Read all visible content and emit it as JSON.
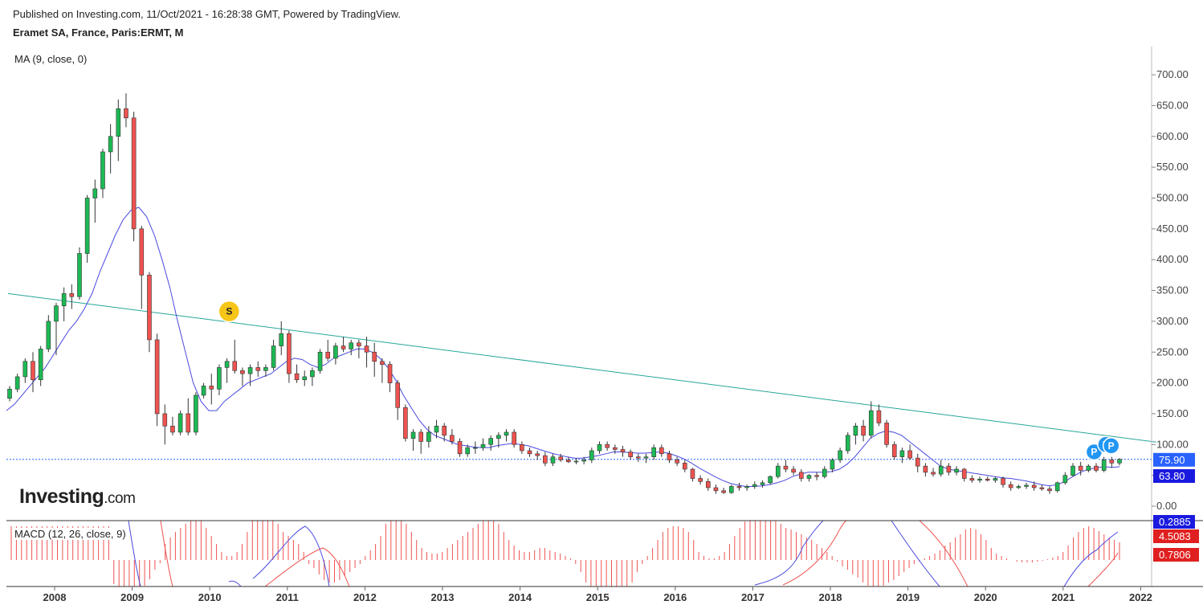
{
  "header": {
    "published": "Published on Investing.com, 11/Oct/2021 - 16:28:38 GMT, Powered by TradingView.",
    "symbol": "Eramet SA, France, Paris:ERMT, M"
  },
  "indicators": {
    "ma_label": "MA (9, close, 0)",
    "macd_label": "MACD (12, 26, close, 9)"
  },
  "logo": {
    "main": "Investing",
    "suffix": ".com"
  },
  "colors": {
    "up": "#26a69a",
    "up_fill": "#1db954",
    "down": "#ef5350",
    "ma": "#4a4ae0",
    "trendline": "#26a69a",
    "last_line": "#2962ff",
    "macd_line": "#4a4ae0",
    "signal_line": "#ef5350",
    "hist": "#ef5350",
    "badge_p": "#2196f3",
    "badge_s": "#f5c518"
  },
  "chart_data": {
    "type": "candlestick",
    "timeframe": "M",
    "ylim": [
      -25,
      740
    ],
    "y_ticks": [
      "0.00",
      "50.00",
      "100.00",
      "150.00",
      "200.00",
      "250.00",
      "300.00",
      "350.00",
      "400.00",
      "450.00",
      "500.00",
      "550.00",
      "600.00",
      "650.00",
      "700.00"
    ],
    "x_ticks": [
      "2008",
      "2009",
      "2010",
      "2011",
      "2012",
      "2013",
      "2014",
      "2015",
      "2016",
      "2017",
      "2018",
      "2019",
      "2020",
      "2021",
      "2022"
    ],
    "last_price": "75.90",
    "ma_value": "63.80",
    "macd_values": [
      "0.2885",
      "4.5083",
      "0.7806"
    ],
    "markers": [
      {
        "label": "S",
        "date": "2010.25",
        "price": 316
      },
      {
        "label": "P",
        "date": "2021.4",
        "price": 88
      },
      {
        "label": "P",
        "date": "2021.55",
        "price": 100
      },
      {
        "label": "P",
        "date": "2021.62",
        "price": 98
      }
    ],
    "trendline": [
      {
        "x": 2007.4,
        "y": 345
      },
      {
        "x": 2022.2,
        "y": 104
      }
    ],
    "candles": [
      [
        175,
        195,
        170,
        190
      ],
      [
        190,
        215,
        185,
        210
      ],
      [
        210,
        240,
        200,
        235
      ],
      [
        235,
        250,
        185,
        205
      ],
      [
        205,
        260,
        195,
        255
      ],
      [
        255,
        310,
        250,
        300
      ],
      [
        300,
        330,
        245,
        325
      ],
      [
        325,
        355,
        300,
        345
      ],
      [
        345,
        360,
        320,
        340
      ],
      [
        340,
        420,
        335,
        410
      ],
      [
        410,
        505,
        395,
        500
      ],
      [
        500,
        530,
        460,
        515
      ],
      [
        515,
        580,
        500,
        575
      ],
      [
        575,
        620,
        540,
        600
      ],
      [
        600,
        660,
        560,
        645
      ],
      [
        645,
        670,
        615,
        630
      ],
      [
        630,
        640,
        430,
        450
      ],
      [
        450,
        455,
        320,
        375
      ],
      [
        375,
        380,
        250,
        270
      ],
      [
        270,
        280,
        130,
        150
      ],
      [
        150,
        165,
        100,
        130
      ],
      [
        130,
        145,
        115,
        120
      ],
      [
        120,
        155,
        115,
        150
      ],
      [
        150,
        175,
        115,
        120
      ],
      [
        120,
        185,
        115,
        180
      ],
      [
        180,
        200,
        175,
        195
      ],
      [
        195,
        215,
        165,
        190
      ],
      [
        190,
        230,
        180,
        225
      ],
      [
        225,
        240,
        200,
        235
      ],
      [
        235,
        270,
        215,
        220
      ],
      [
        220,
        225,
        195,
        215
      ],
      [
        215,
        230,
        195,
        225
      ],
      [
        225,
        235,
        210,
        220
      ],
      [
        220,
        230,
        210,
        225
      ],
      [
        225,
        270,
        220,
        260
      ],
      [
        260,
        300,
        245,
        280
      ],
      [
        280,
        285,
        200,
        215
      ],
      [
        215,
        230,
        200,
        205
      ],
      [
        205,
        220,
        195,
        210
      ],
      [
        210,
        225,
        195,
        220
      ],
      [
        220,
        255,
        215,
        250
      ],
      [
        250,
        270,
        235,
        240
      ],
      [
        240,
        265,
        230,
        260
      ],
      [
        260,
        275,
        250,
        255
      ],
      [
        255,
        270,
        245,
        265
      ],
      [
        265,
        270,
        240,
        260
      ],
      [
        260,
        275,
        225,
        250
      ],
      [
        250,
        265,
        210,
        235
      ],
      [
        235,
        240,
        200,
        230
      ],
      [
        230,
        235,
        185,
        200
      ],
      [
        200,
        205,
        140,
        160
      ],
      [
        160,
        165,
        105,
        110
      ],
      [
        110,
        125,
        90,
        120
      ],
      [
        120,
        125,
        85,
        105
      ],
      [
        105,
        130,
        95,
        120
      ],
      [
        120,
        140,
        110,
        130
      ],
      [
        130,
        135,
        105,
        115
      ],
      [
        115,
        125,
        100,
        105
      ],
      [
        105,
        110,
        80,
        85
      ],
      [
        85,
        100,
        80,
        95
      ],
      [
        95,
        105,
        85,
        95
      ],
      [
        95,
        110,
        90,
        100
      ],
      [
        100,
        115,
        90,
        110
      ],
      [
        110,
        120,
        95,
        115
      ],
      [
        115,
        125,
        105,
        120
      ],
      [
        120,
        125,
        95,
        100
      ],
      [
        100,
        105,
        85,
        90
      ],
      [
        90,
        95,
        80,
        85
      ],
      [
        85,
        90,
        75,
        82
      ],
      [
        82,
        88,
        65,
        70
      ],
      [
        70,
        85,
        65,
        80
      ],
      [
        80,
        85,
        72,
        75
      ],
      [
        75,
        80,
        70,
        72
      ],
      [
        72,
        78,
        68,
        73
      ],
      [
        73,
        80,
        68,
        75
      ],
      [
        75,
        95,
        70,
        90
      ],
      [
        90,
        105,
        85,
        100
      ],
      [
        100,
        105,
        90,
        95
      ],
      [
        95,
        100,
        85,
        92
      ],
      [
        92,
        98,
        80,
        88
      ],
      [
        88,
        92,
        75,
        80
      ],
      [
        80,
        85,
        72,
        78
      ],
      [
        78,
        85,
        70,
        80
      ],
      [
        80,
        100,
        75,
        95
      ],
      [
        95,
        100,
        80,
        85
      ],
      [
        85,
        90,
        70,
        75
      ],
      [
        75,
        80,
        65,
        70
      ],
      [
        70,
        75,
        55,
        60
      ],
      [
        60,
        62,
        40,
        45
      ],
      [
        45,
        50,
        35,
        40
      ],
      [
        40,
        45,
        25,
        30
      ],
      [
        30,
        35,
        20,
        25
      ],
      [
        25,
        30,
        20,
        22
      ],
      [
        22,
        35,
        20,
        32
      ],
      [
        32,
        38,
        25,
        30
      ],
      [
        30,
        35,
        25,
        32
      ],
      [
        32,
        40,
        28,
        35
      ],
      [
        35,
        42,
        30,
        38
      ],
      [
        38,
        50,
        35,
        48
      ],
      [
        48,
        70,
        45,
        65
      ],
      [
        65,
        75,
        55,
        60
      ],
      [
        60,
        65,
        50,
        55
      ],
      [
        55,
        60,
        40,
        45
      ],
      [
        45,
        52,
        40,
        50
      ],
      [
        50,
        55,
        42,
        48
      ],
      [
        48,
        65,
        45,
        60
      ],
      [
        60,
        78,
        55,
        75
      ],
      [
        75,
        95,
        70,
        90
      ],
      [
        90,
        120,
        85,
        115
      ],
      [
        115,
        135,
        100,
        130
      ],
      [
        130,
        140,
        105,
        115
      ],
      [
        115,
        170,
        110,
        155
      ],
      [
        155,
        165,
        130,
        135
      ],
      [
        135,
        140,
        95,
        100
      ],
      [
        100,
        105,
        75,
        80
      ],
      [
        80,
        95,
        70,
        90
      ],
      [
        90,
        100,
        75,
        78
      ],
      [
        78,
        85,
        55,
        65
      ],
      [
        65,
        70,
        48,
        55
      ],
      [
        55,
        62,
        48,
        52
      ],
      [
        52,
        75,
        48,
        65
      ],
      [
        65,
        70,
        50,
        55
      ],
      [
        55,
        65,
        50,
        60
      ],
      [
        60,
        62,
        40,
        45
      ],
      [
        45,
        50,
        38,
        42
      ],
      [
        42,
        48,
        38,
        44
      ],
      [
        44,
        48,
        40,
        42
      ],
      [
        42,
        48,
        38,
        45
      ],
      [
        45,
        48,
        30,
        35
      ],
      [
        35,
        40,
        25,
        30
      ],
      [
        30,
        35,
        28,
        32
      ],
      [
        32,
        38,
        28,
        34
      ],
      [
        34,
        40,
        25,
        30
      ],
      [
        30,
        35,
        25,
        28
      ],
      [
        28,
        32,
        20,
        25
      ],
      [
        25,
        40,
        22,
        38
      ],
      [
        38,
        55,
        35,
        50
      ],
      [
        50,
        70,
        48,
        65
      ],
      [
        65,
        72,
        50,
        58
      ],
      [
        58,
        68,
        55,
        65
      ],
      [
        65,
        70,
        55,
        58
      ],
      [
        58,
        80,
        55,
        75
      ],
      [
        75,
        80,
        62,
        70
      ],
      [
        70,
        78,
        66,
        76
      ]
    ],
    "ma": [
      155,
      165,
      180,
      195,
      210,
      225,
      245,
      265,
      285,
      300,
      320,
      345,
      380,
      410,
      440,
      465,
      480,
      485,
      470,
      440,
      400,
      355,
      300,
      250,
      200,
      170,
      155,
      155,
      170,
      180,
      190,
      200,
      205,
      210,
      215,
      225,
      235,
      240,
      238,
      230,
      225,
      230,
      240,
      245,
      250,
      255,
      255,
      250,
      240,
      225,
      205,
      180,
      160,
      140,
      125,
      115,
      110,
      105,
      100,
      98,
      96,
      95,
      95,
      98,
      100,
      102,
      100,
      98,
      94,
      90,
      86,
      83,
      80,
      78,
      78,
      80,
      82,
      85,
      88,
      88,
      87,
      86,
      86,
      87,
      88,
      86,
      82,
      77,
      70,
      62,
      55,
      48,
      42,
      37,
      34,
      32,
      32,
      33,
      35,
      38,
      42,
      48,
      52,
      55,
      55,
      55,
      56,
      60,
      68,
      80,
      95,
      110,
      118,
      122,
      120,
      115,
      105,
      95,
      85,
      75,
      65,
      60,
      58,
      56,
      54,
      52,
      50,
      48,
      46,
      45,
      43,
      41,
      38,
      35,
      33,
      35,
      40,
      48,
      55,
      60,
      62,
      64,
      63,
      64
    ],
    "macd_hist": [
      42,
      42,
      42,
      42,
      42,
      42,
      42,
      42,
      42,
      42,
      42,
      42,
      42,
      42,
      42,
      42,
      42,
      42,
      42,
      42,
      -30,
      -40,
      -48,
      -52,
      -48,
      -40,
      -32,
      -24,
      -12,
      -4,
      20,
      28,
      35,
      40,
      45,
      50,
      50,
      50,
      40,
      30,
      20,
      10,
      5,
      5,
      10,
      20,
      35,
      50,
      55,
      60,
      60,
      55,
      45,
      35,
      30,
      25,
      20,
      10,
      -5,
      -10,
      -18,
      -25,
      -28,
      -28,
      -25,
      -20,
      -15,
      -10,
      -5,
      5,
      12,
      20,
      30,
      45,
      55,
      60,
      55,
      45,
      35,
      25,
      15,
      10,
      8,
      8,
      10,
      15,
      20,
      25,
      30,
      35,
      40,
      45,
      50,
      52,
      52,
      45,
      35,
      25,
      18,
      12,
      10,
      10,
      12,
      15,
      15,
      12,
      10,
      8,
      5,
      2,
      -5,
      -15,
      -28,
      -38,
      -45,
      -48,
      -50,
      -52,
      -52,
      -48,
      -38,
      -28,
      -15,
      -5,
      5,
      15,
      25,
      35,
      40,
      42,
      42,
      40,
      35,
      25,
      10,
      5,
      2,
      2,
      5,
      10,
      20,
      30,
      40,
      48,
      55,
      60,
      60,
      60,
      58,
      52,
      45,
      40,
      38,
      35,
      32,
      28,
      25,
      20,
      15,
      10,
      5,
      -2,
      -8,
      -12,
      -18,
      -22,
      -28,
      -32,
      -35,
      -35,
      -32,
      -28,
      -25,
      -20,
      -15,
      -10,
      -5,
      -2,
      2,
      5,
      8,
      12,
      18,
      22,
      28,
      32,
      38,
      40,
      38,
      32,
      25,
      15,
      8,
      5,
      2,
      0,
      -2,
      -3,
      -3,
      -3,
      -2,
      -1,
      1,
      3,
      5,
      10,
      18,
      28,
      35,
      40,
      42,
      40,
      36,
      32,
      28,
      25,
      22
    ]
  },
  "ui": {
    "y_axis_badges": {
      "price": "75.90",
      "ma": "63.80",
      "macd1": "0.2885",
      "macd2": "4.5083",
      "macd3": "0.7806"
    }
  }
}
